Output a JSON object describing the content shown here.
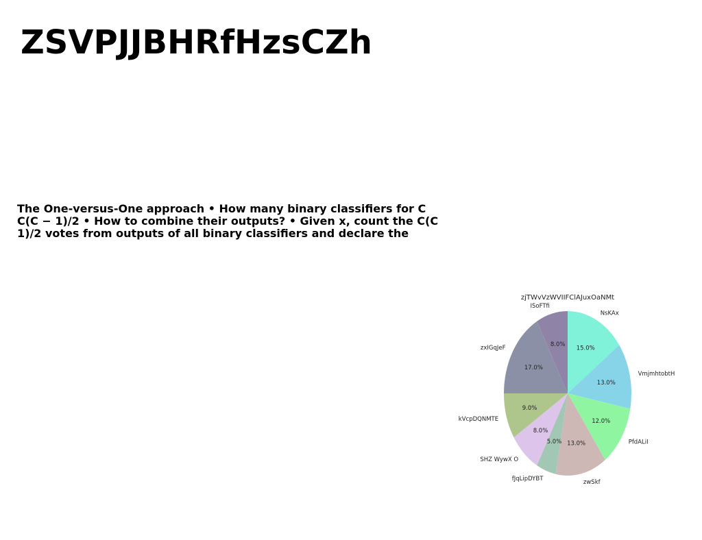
{
  "document": {
    "title": "ZSVPJJBHRfHzsCZh",
    "paragraph": "The One-versus-One approach • How many binary classifiers for C C(C − 1)/2 • How to combine their outputs? • Given x, count the C(C 1)/2 votes from outputs of all binary classifiers and declare the"
  },
  "chart_data": {
    "type": "pie",
    "title": "zjTWvVzWVIIFClAJuxOaNMt",
    "start_angle_deg": 90,
    "direction": "clockwise",
    "labels": [
      "NsKAx",
      "VmjmhtobtH",
      "PfdALiI",
      "zwSkf",
      "fJqLipDYBT",
      "SHZ WywX O",
      "kVcpDQNMTE",
      "zxIGqJeF",
      "ISoFTfi"
    ],
    "values": [
      15.0,
      13.0,
      12.0,
      13.0,
      5.0,
      8.0,
      9.0,
      17.0,
      8.0
    ],
    "pct_labels": [
      "15.0%",
      "13.0%",
      "12.0%",
      "13.0%",
      "5.0%",
      "8.0%",
      "9.0%",
      "17.0%",
      "8.0%"
    ],
    "colors": [
      "#7ff2d9",
      "#87d4e8",
      "#90f5a1",
      "#cdb8b6",
      "#a3c7b5",
      "#dcc4eb",
      "#aec58b",
      "#8c90a6",
      "#8f84a8"
    ]
  }
}
